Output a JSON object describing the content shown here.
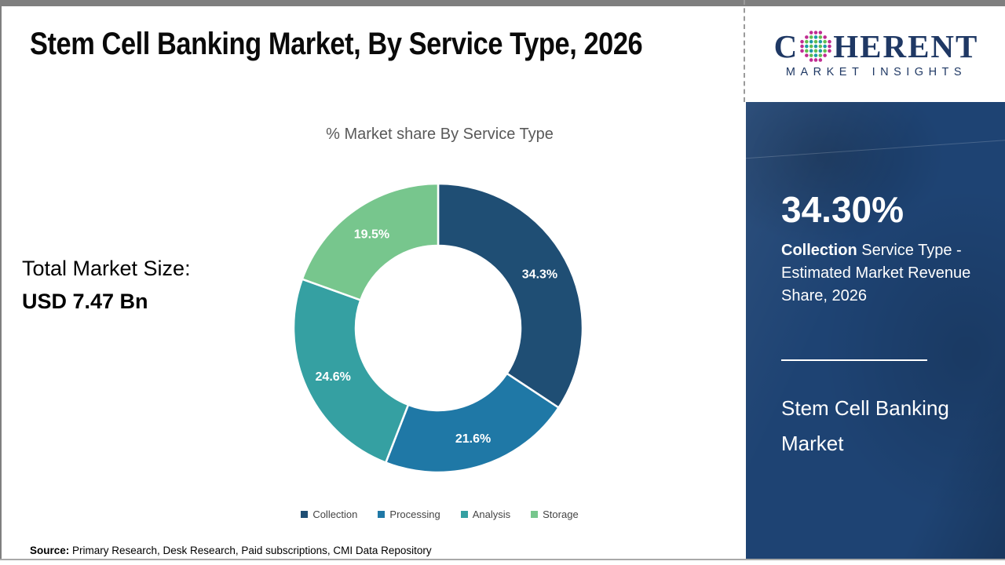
{
  "header": {
    "title": "Stem Cell Banking Market, By Service Type, 2026"
  },
  "logo": {
    "word_start": "C",
    "word_end": "HERENT",
    "subtitle": "MARKET INSIGHTS",
    "brand_color": "#1f3864",
    "sphere_colors": {
      "outer": "#c02c92",
      "teal": "#1c9aa8",
      "green": "#62bd4f"
    }
  },
  "left_panel": {
    "total_label": "Total Market Size:",
    "total_value": "USD 7.47 Bn"
  },
  "chart_data": {
    "type": "pie",
    "subtype": "donut",
    "title": "% Market share By Service Type",
    "categories": [
      "Collection",
      "Processing",
      "Analysis",
      "Storage"
    ],
    "values": [
      34.3,
      21.6,
      24.6,
      19.5
    ],
    "labels": [
      "34.3%",
      "21.6%",
      "24.6%",
      "19.5%"
    ],
    "colors": [
      "#1f4e74",
      "#1f78a6",
      "#35a0a2",
      "#77c68d"
    ],
    "start_angle_deg": 0,
    "direction": "clockwise",
    "inner_radius_ratio": 0.57,
    "legend_position": "bottom"
  },
  "sidebar": {
    "background_color": "#1e4373",
    "stat_value": "34.30%",
    "stat_label_bold": "Collection",
    "stat_label_rest": " Service Type - Estimated Market Revenue Share, 2026",
    "market_name": "Stem Cell Banking Market"
  },
  "footer": {
    "source_label": "Source:",
    "source_text": " Primary Research, Desk Research, Paid subscriptions, CMI Data Repository"
  }
}
